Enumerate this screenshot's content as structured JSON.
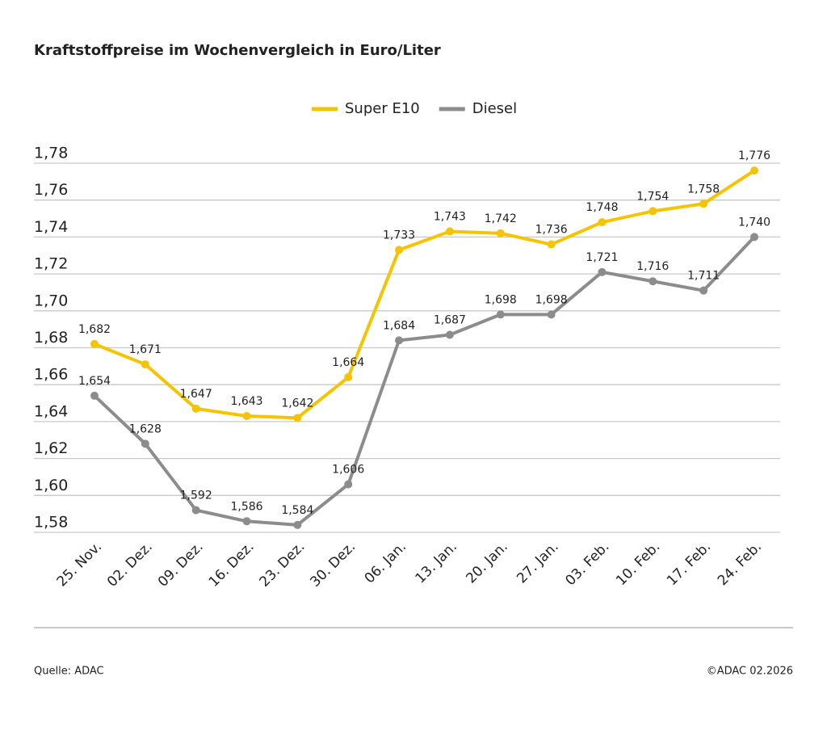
{
  "chart_data": {
    "type": "line",
    "title": "Kraftstoffpreise im Wochenvergleich in Euro/Liter",
    "categories": [
      "25. Nov.",
      "02. Dez.",
      "09. Dez.",
      "16. Dez.",
      "23. Dez.",
      "30. Dez.",
      "06. Jan.",
      "13. Jan.",
      "20. Jan.",
      "27. Jan.",
      "03. Feb.",
      "10. Feb.",
      "17. Feb.",
      "24. Feb."
    ],
    "series": [
      {
        "name": "Super E10",
        "color": "#f5c400",
        "values": [
          1.682,
          1.671,
          1.647,
          1.643,
          1.642,
          1.664,
          1.733,
          1.743,
          1.742,
          1.736,
          1.748,
          1.754,
          1.758,
          1.776
        ],
        "value_labels": [
          "1,682",
          "1,671",
          "1,647",
          "1,643",
          "1,642",
          "1,664",
          "1,733",
          "1,743",
          "1,742",
          "1,736",
          "1,748",
          "1,754",
          "1,758",
          "1,776"
        ]
      },
      {
        "name": "Diesel",
        "color": "#8c8c8c",
        "values": [
          1.654,
          1.628,
          1.592,
          1.586,
          1.584,
          1.606,
          1.684,
          1.687,
          1.698,
          1.698,
          1.721,
          1.716,
          1.711,
          1.74
        ],
        "value_labels": [
          "1,654",
          "1,628",
          "1,592",
          "1,586",
          "1,584",
          "1,606",
          "1,684",
          "1,687",
          "1,698",
          "1,698",
          "1,721",
          "1,716",
          "1,711",
          "1,740"
        ]
      }
    ],
    "ylim": [
      1.58,
      1.78
    ],
    "yticks": [
      {
        "value": 1.58,
        "label": "1,58"
      },
      {
        "value": 1.6,
        "label": "1,60"
      },
      {
        "value": 1.62,
        "label": "1,62"
      },
      {
        "value": 1.64,
        "label": "1,64"
      },
      {
        "value": 1.66,
        "label": "1,66"
      },
      {
        "value": 1.68,
        "label": "1,68"
      },
      {
        "value": 1.7,
        "label": "1,70"
      },
      {
        "value": 1.72,
        "label": "1,72"
      },
      {
        "value": 1.74,
        "label": "1,74"
      },
      {
        "value": 1.76,
        "label": "1,76"
      },
      {
        "value": 1.78,
        "label": "1,78"
      }
    ],
    "grid": true,
    "legend": "top",
    "source": "Quelle: ADAC",
    "copyright": "©ADAC 02.2026"
  }
}
